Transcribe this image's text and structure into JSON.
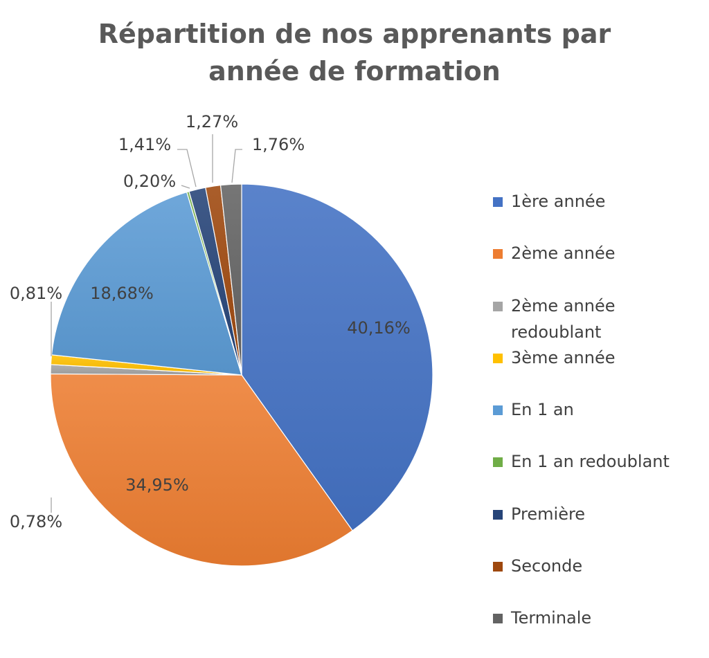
{
  "chart_data": {
    "type": "pie",
    "title_lines": [
      "Répartition de nos apprenants par",
      "année de formation"
    ],
    "categories": [
      "1ère année",
      "2ème année",
      "2ème année redoublant",
      "3ème année",
      "En 1 an",
      "En 1 an redoublant",
      "Première",
      "Seconde",
      "Terminale"
    ],
    "values": [
      40.16,
      34.95,
      0.78,
      0.81,
      18.68,
      0.2,
      1.41,
      1.27,
      1.76
    ],
    "labels": [
      "40,16%",
      "34,95%",
      "0,78%",
      "0,81%",
      "18,68%",
      "0,20%",
      "1,41%",
      "1,27%",
      "1,76%"
    ],
    "colors": [
      "#4472c4",
      "#ed7d31",
      "#a5a5a5",
      "#ffc000",
      "#5b9bd5",
      "#70ad47",
      "#264478",
      "#9e480e",
      "#636363"
    ],
    "legend_lines": [
      [
        "1ère année"
      ],
      [
        "2ème année"
      ],
      [
        "2ème année",
        "redoublant"
      ],
      [
        "3ème année"
      ],
      [
        "En 1 an"
      ],
      [
        "En 1 an redoublant"
      ],
      [
        "Première"
      ],
      [
        "Seconde"
      ],
      [
        "Terminale"
      ]
    ],
    "legend_position": "right"
  }
}
